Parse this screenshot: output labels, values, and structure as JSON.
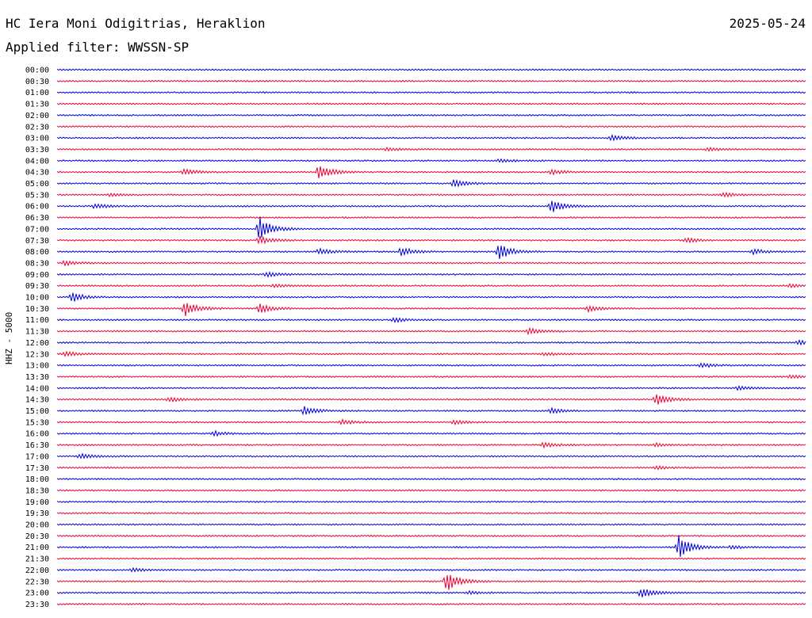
{
  "header": {
    "station": "HC Iera Moni Odigitrias, Heraklion",
    "date": "2025-05-24",
    "filter": "Applied filter: WWSSN-SP"
  },
  "channel": "HHZ - 5000",
  "colors": {
    "even_trace": "#0000dd",
    "odd_trace": "#ee0033"
  },
  "chart_data": {
    "type": "line",
    "title": "HC Iera Moni Odigitrias, Heraklion",
    "ylabel": "HHZ - 5000",
    "xlabel": "",
    "grid": false,
    "legend": "none",
    "series": [
      {
        "label": "00:00",
        "events": []
      },
      {
        "label": "00:30",
        "events": []
      },
      {
        "label": "01:00",
        "events": []
      },
      {
        "label": "01:30",
        "events": []
      },
      {
        "label": "02:00",
        "events": []
      },
      {
        "label": "02:30",
        "events": []
      },
      {
        "label": "03:00",
        "events": [
          [
            0.74,
            4
          ]
        ]
      },
      {
        "label": "03:30",
        "events": [
          [
            0.44,
            2
          ],
          [
            0.87,
            2
          ]
        ]
      },
      {
        "label": "04:00",
        "events": [
          [
            0.59,
            2
          ]
        ]
      },
      {
        "label": "04:30",
        "events": [
          [
            0.17,
            4
          ],
          [
            0.35,
            10
          ],
          [
            0.66,
            3
          ]
        ]
      },
      {
        "label": "05:00",
        "events": [
          [
            0.53,
            5
          ]
        ]
      },
      {
        "label": "05:30",
        "events": [
          [
            0.07,
            2
          ],
          [
            0.89,
            3
          ]
        ]
      },
      {
        "label": "06:00",
        "events": [
          [
            0.05,
            3
          ],
          [
            0.66,
            8
          ]
        ]
      },
      {
        "label": "06:30",
        "events": []
      },
      {
        "label": "07:00",
        "events": [
          [
            0.27,
            16
          ]
        ]
      },
      {
        "label": "07:30",
        "events": [
          [
            0.27,
            5
          ],
          [
            0.84,
            3
          ]
        ]
      },
      {
        "label": "08:00",
        "events": [
          [
            0.35,
            4
          ],
          [
            0.46,
            6
          ],
          [
            0.59,
            10
          ],
          [
            0.93,
            3
          ]
        ]
      },
      {
        "label": "08:30",
        "events": [
          [
            0.01,
            3
          ]
        ]
      },
      {
        "label": "09:00",
        "events": [
          [
            0.28,
            3
          ]
        ]
      },
      {
        "label": "09:30",
        "events": [
          [
            0.29,
            2
          ],
          [
            0.98,
            2
          ]
        ]
      },
      {
        "label": "10:00",
        "events": [
          [
            0.02,
            6
          ]
        ]
      },
      {
        "label": "10:30",
        "events": [
          [
            0.17,
            10
          ],
          [
            0.27,
            6
          ],
          [
            0.71,
            4
          ]
        ]
      },
      {
        "label": "11:00",
        "events": [
          [
            0.45,
            3
          ]
        ]
      },
      {
        "label": "11:30",
        "events": [
          [
            0.63,
            4
          ]
        ]
      },
      {
        "label": "12:00",
        "events": [
          [
            0.99,
            3
          ]
        ]
      },
      {
        "label": "12:30",
        "events": [
          [
            0.01,
            3
          ],
          [
            0.65,
            2
          ]
        ]
      },
      {
        "label": "13:00",
        "events": [
          [
            0.86,
            3
          ]
        ]
      },
      {
        "label": "13:30",
        "events": [
          [
            0.98,
            2
          ]
        ]
      },
      {
        "label": "14:00",
        "events": [
          [
            0.91,
            3
          ]
        ]
      },
      {
        "label": "14:30",
        "events": [
          [
            0.15,
            3
          ],
          [
            0.8,
            8
          ]
        ]
      },
      {
        "label": "15:00",
        "events": [
          [
            0.33,
            5
          ],
          [
            0.66,
            3
          ]
        ]
      },
      {
        "label": "15:30",
        "events": [
          [
            0.38,
            3
          ],
          [
            0.53,
            3
          ]
        ]
      },
      {
        "label": "16:00",
        "events": [
          [
            0.21,
            3
          ]
        ]
      },
      {
        "label": "16:30",
        "events": [
          [
            0.65,
            3
          ],
          [
            0.8,
            2
          ]
        ]
      },
      {
        "label": "17:00",
        "events": [
          [
            0.03,
            3
          ]
        ]
      },
      {
        "label": "17:30",
        "events": [
          [
            0.8,
            2
          ]
        ]
      },
      {
        "label": "18:00",
        "events": []
      },
      {
        "label": "18:30",
        "events": []
      },
      {
        "label": "19:00",
        "events": []
      },
      {
        "label": "19:30",
        "events": []
      },
      {
        "label": "20:00",
        "events": []
      },
      {
        "label": "20:30",
        "events": []
      },
      {
        "label": "21:00",
        "events": [
          [
            0.83,
            16
          ],
          [
            0.9,
            2
          ]
        ]
      },
      {
        "label": "21:30",
        "events": []
      },
      {
        "label": "22:00",
        "events": [
          [
            0.1,
            2
          ]
        ]
      },
      {
        "label": "22:30",
        "events": [
          [
            0.52,
            13
          ]
        ]
      },
      {
        "label": "23:00",
        "events": [
          [
            0.55,
            2
          ],
          [
            0.78,
            7
          ]
        ]
      },
      {
        "label": "23:30",
        "events": []
      }
    ]
  }
}
